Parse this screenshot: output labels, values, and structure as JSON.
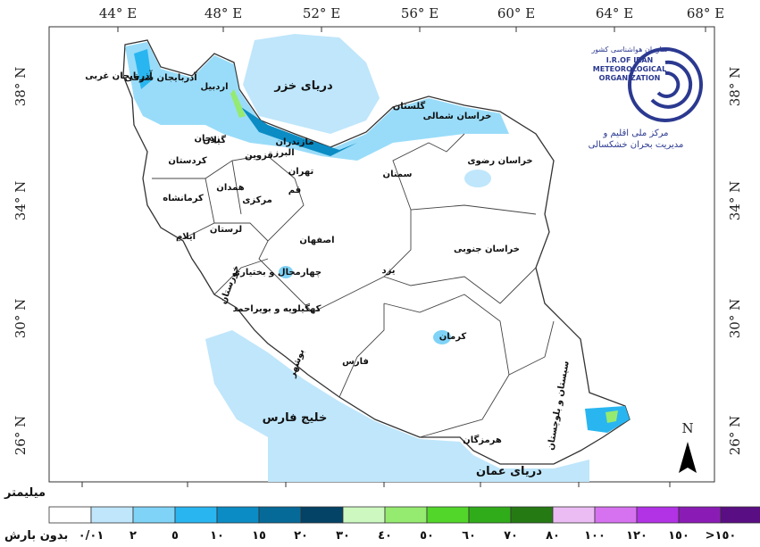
{
  "axes": {
    "top": [
      "44° E",
      "48° E",
      "52° E",
      "56° E",
      "60° E",
      "64° E",
      "68° E"
    ],
    "side": [
      "38° N",
      "34° N",
      "30° N",
      "26° N"
    ]
  },
  "water": {
    "caspian": "دریای خزر",
    "gulf": "خلیج فارس",
    "oman": "دریای عمان"
  },
  "provinces": [
    "آذربایجان غربی",
    "آذربایجان شرقی",
    "اردبیل",
    "گیلان",
    "مازندران",
    "گلستان",
    "خراسان شمالی",
    "خراسان رضوی",
    "خراسان جنوبی",
    "سمنان",
    "تهران",
    "قزوین",
    "زنجان",
    "البرز",
    "کردستان",
    "کرمانشاه",
    "همدان",
    "مرکزی",
    "قم",
    "اصفهان",
    "لرستان",
    "ایلام",
    "خوزستان",
    "چهارمحال و بختیاری",
    "کهگیلویه و بویراحمد",
    "یزد",
    "کرمان",
    "فارس",
    "بوشهر",
    "هرمزگان",
    "سیستان و بلوچستان"
  ],
  "logo": {
    "org_fa": "سازمان هواشناسی کشور",
    "line1": "I.R.OF IRAN",
    "line2": "METEOROLOGICAL",
    "line3": "ORGANIZATION",
    "center1": "مرکز ملی اقلیم و",
    "center2": "مدیریت بحران خشکسالی"
  },
  "north": "N",
  "legend": {
    "title": "میلیمتر",
    "none": "بدون بارش",
    "colors": [
      "#ffffff",
      "#bfe6fb",
      "#7fd3f7",
      "#29b6f0",
      "#0b8cc4",
      "#066a99",
      "#044266",
      "#cdf8c0",
      "#95ea70",
      "#52d62a",
      "#30ac1a",
      "#267a14",
      "#ebbcf4",
      "#d672f0",
      "#b232e6",
      "#8a1cb5",
      "#5a0e84"
    ],
    "labels": [
      "٠/٠١",
      "٢",
      "٥",
      "١٠",
      "١٥",
      "٢٠",
      "٣٠",
      "٤٠",
      "٥٠",
      "٦٠",
      "٧٠",
      "٨٠",
      "١٠٠",
      "١٢٠",
      "١٥٠",
      ">١٥٠"
    ]
  }
}
